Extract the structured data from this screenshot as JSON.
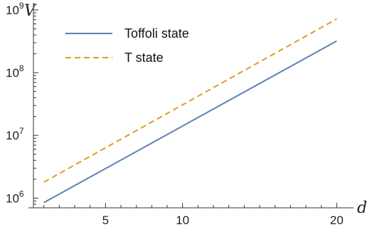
{
  "chart_data": {
    "type": "line",
    "xlabel": "d",
    "ylabel": "V",
    "xlim": [
      0,
      21
    ],
    "ylim": [
      700000,
      1300000000
    ],
    "yscale": "log",
    "x_ticks": [
      5,
      10,
      20
    ],
    "y_ticks": [
      {
        "value": 1000000,
        "base": "10",
        "exp": "6"
      },
      {
        "value": 10000000,
        "base": "10",
        "exp": "7"
      },
      {
        "value": 100000000,
        "base": "10",
        "exp": "8"
      },
      {
        "value": 1000000000,
        "base": "10",
        "exp": "9"
      }
    ],
    "legend_position": "top-left",
    "series": [
      {
        "name": "Toffoli state",
        "color": "#5e81b5",
        "dash": "solid",
        "x": [
          1,
          20
        ],
        "y": [
          850000,
          320000000
        ]
      },
      {
        "name": "T state",
        "color": "#e19c24",
        "dash": "dashed",
        "x": [
          1,
          20
        ],
        "y": [
          1800000,
          720000000
        ]
      }
    ]
  }
}
